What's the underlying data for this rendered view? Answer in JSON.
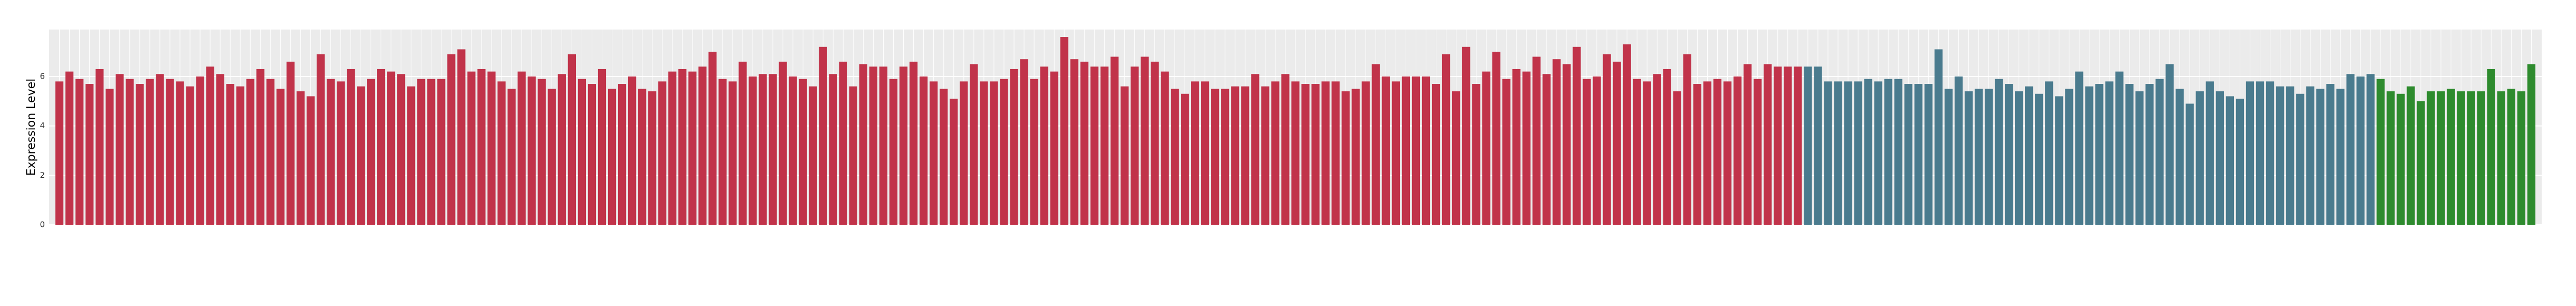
{
  "chart_data": {
    "type": "bar",
    "ylabel": "Expression Level",
    "ylim": [
      0,
      7.9
    ],
    "yticks": [
      0,
      2,
      4,
      6
    ],
    "grid": true,
    "series": [
      {
        "color": "#c1334a",
        "values": [
          5.8,
          6.2,
          5.9,
          5.7,
          6.3,
          5.5,
          6.1,
          5.9,
          5.7,
          5.9,
          6.1,
          5.9,
          5.8,
          5.6,
          6.0,
          6.4,
          6.1,
          5.7,
          5.6,
          5.9,
          6.3,
          5.9,
          5.5,
          6.6,
          5.4,
          5.2,
          6.9,
          5.9,
          5.8,
          6.3,
          5.6,
          5.9,
          6.3,
          6.2,
          6.1,
          5.6,
          5.9,
          5.9,
          5.9,
          6.9,
          7.1,
          6.2,
          6.3,
          6.2,
          5.8,
          5.5,
          6.2,
          6.0,
          5.9,
          5.5,
          6.1,
          6.9,
          5.9,
          5.7,
          6.3,
          5.5,
          5.7,
          6.0,
          5.5,
          5.4,
          5.8,
          6.2,
          6.3,
          6.2,
          6.4,
          7.0,
          5.9,
          5.8,
          6.6,
          6.0,
          6.1,
          6.1,
          6.6,
          6.0,
          5.9,
          5.6,
          7.2,
          6.1,
          6.6,
          5.6,
          6.5,
          6.4,
          6.4,
          5.9,
          6.4,
          6.6,
          6.0,
          5.8,
          5.5,
          5.1,
          5.8,
          6.5,
          5.8,
          5.8,
          5.9,
          6.3,
          6.7,
          5.9,
          6.4,
          6.2,
          7.6,
          6.7,
          6.6,
          6.4,
          6.4,
          6.8,
          5.6,
          6.4,
          6.8,
          6.6,
          6.2,
          5.5,
          5.3,
          5.8,
          5.8,
          5.5,
          5.5,
          5.6,
          5.6,
          6.1,
          5.6,
          5.8,
          6.1,
          5.8,
          5.7,
          5.7,
          5.8,
          5.8,
          5.4,
          5.5,
          5.8,
          6.5,
          6.0,
          5.8,
          6.0,
          6.0,
          6.0,
          5.7,
          6.9,
          5.4,
          7.2,
          5.7,
          6.2,
          7.0,
          5.9,
          6.3,
          6.2,
          6.8,
          6.1,
          6.7,
          6.5,
          7.2,
          5.9,
          6.0,
          6.9,
          6.6,
          7.3,
          5.9,
          5.8,
          6.1,
          6.3,
          5.4,
          6.9,
          5.7,
          5.8,
          5.9,
          5.8,
          6.0,
          6.5,
          5.9,
          6.5,
          6.4,
          6.4,
          6.4
        ]
      },
      {
        "color": "#4a7b8e",
        "values": [
          6.4,
          6.4,
          5.8,
          5.8,
          5.8,
          5.8,
          5.9,
          5.8,
          5.9,
          5.9,
          5.7,
          5.7,
          5.7,
          7.1,
          5.5,
          6.0,
          5.4,
          5.5,
          5.5,
          5.9,
          5.7,
          5.4,
          5.6,
          5.3,
          5.8,
          5.2,
          5.5,
          6.2,
          5.6,
          5.7,
          5.8,
          6.2,
          5.7,
          5.4,
          5.7,
          5.9,
          6.5,
          5.5,
          4.9,
          5.4,
          5.8,
          5.4,
          5.2,
          5.1,
          5.8,
          5.8,
          5.8,
          5.6,
          5.6,
          5.3,
          5.6,
          5.5,
          5.7,
          5.5,
          6.1,
          6.0,
          6.1
        ]
      },
      {
        "color": "#2e8b2e",
        "values": [
          5.9,
          5.4,
          5.3,
          5.6,
          5.0,
          5.4,
          5.4,
          5.5,
          5.4,
          5.4,
          5.4,
          6.3,
          5.4,
          5.5,
          5.4,
          6.5
        ]
      }
    ]
  }
}
